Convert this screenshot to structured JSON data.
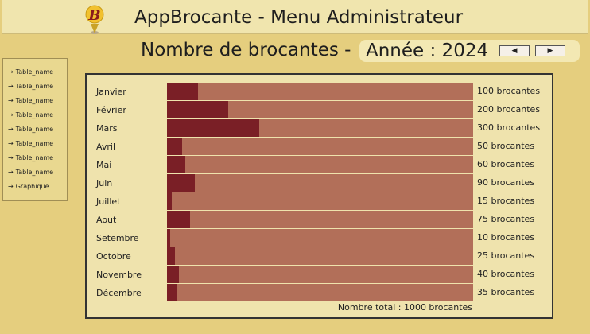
{
  "header": {
    "app_title": "AppBrocante - Menu Administrateur",
    "logo_letter": "B"
  },
  "page": {
    "title_prefix": "Nombre de brocantes - ",
    "year_label": "Année : 2024",
    "prev_icon": "◀",
    "next_icon": "▶"
  },
  "sidebar": {
    "items": [
      {
        "label": "Table_name"
      },
      {
        "label": "Table_name"
      },
      {
        "label": "Table_name"
      },
      {
        "label": "Table_name"
      },
      {
        "label": "Table_name"
      },
      {
        "label": "Table_name"
      },
      {
        "label": "Table_name"
      },
      {
        "label": "Table_name"
      },
      {
        "label": "Graphique"
      }
    ],
    "arrow": "→"
  },
  "colors": {
    "bar_fill": "#7a1f26",
    "bar_track": "#b26f59"
  },
  "chart_data": {
    "type": "bar",
    "orientation": "horizontal",
    "categories": [
      "Janvier",
      "Février",
      "Mars",
      "Avril",
      "Mai",
      "Juin",
      "Juillet",
      "Aout",
      "Setembre",
      "Octobre",
      "Novembre",
      "Décembre"
    ],
    "values": [
      100,
      200,
      300,
      50,
      60,
      90,
      15,
      75,
      10,
      25,
      40,
      35
    ],
    "value_labels": [
      "100 brocantes",
      "200 brocantes",
      "300 brocantes",
      "50 brocantes",
      "60 brocantes",
      "90 brocantes",
      "15 brocantes",
      "75 brocantes",
      "10 brocantes",
      "25 brocantes",
      "40 brocantes",
      "35 brocantes"
    ],
    "xlim": [
      0,
      1000
    ],
    "total_label": "Nombre total : 1000 brocantes"
  }
}
